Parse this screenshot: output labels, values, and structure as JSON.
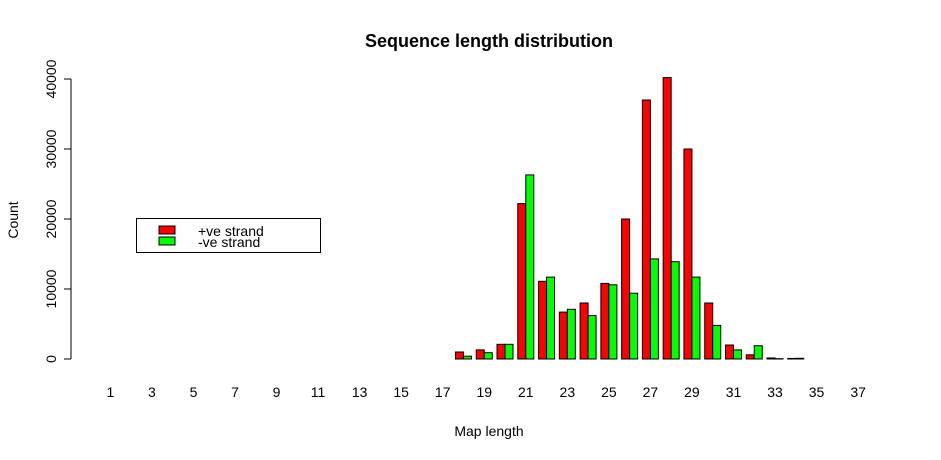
{
  "chart_data": {
    "type": "bar",
    "title": "Sequence length distribution",
    "xlabel": "Map length",
    "ylabel": "Count",
    "ylim": [
      0,
      40000
    ],
    "y_ticks": [
      0,
      10000,
      20000,
      30000,
      40000
    ],
    "categories": [
      "1",
      "2",
      "3",
      "4",
      "5",
      "6",
      "7",
      "8",
      "9",
      "10",
      "11",
      "12",
      "13",
      "14",
      "15",
      "16",
      "17",
      "18",
      "19",
      "20",
      "21",
      "22",
      "23",
      "24",
      "25",
      "26",
      "27",
      "28",
      "29",
      "30",
      "31",
      "32",
      "33",
      "34",
      "35",
      "36",
      "37"
    ],
    "x_tick_labels": [
      "1",
      "3",
      "5",
      "7",
      "9",
      "11",
      "13",
      "15",
      "17",
      "19",
      "21",
      "23",
      "25",
      "27",
      "29",
      "31",
      "33",
      "35",
      "37"
    ],
    "series": [
      {
        "name": "+ve strand",
        "color": "#ff0000",
        "values": [
          0,
          0,
          0,
          0,
          0,
          0,
          0,
          0,
          0,
          0,
          0,
          0,
          0,
          0,
          0,
          0,
          0,
          1000,
          1300,
          2100,
          22200,
          11100,
          6700,
          8000,
          10800,
          20000,
          37000,
          40200,
          30000,
          8000,
          2000,
          600,
          150,
          80,
          0,
          0,
          0
        ]
      },
      {
        "name": "-ve strand",
        "color": "#00ff00",
        "values": [
          0,
          0,
          0,
          0,
          0,
          0,
          0,
          0,
          0,
          0,
          0,
          0,
          0,
          0,
          0,
          0,
          0,
          400,
          900,
          2100,
          26300,
          11700,
          7100,
          6200,
          10600,
          9400,
          14300,
          13900,
          11700,
          4800,
          1300,
          1900,
          50,
          100,
          0,
          0,
          0
        ]
      }
    ],
    "legend_position": "left"
  }
}
